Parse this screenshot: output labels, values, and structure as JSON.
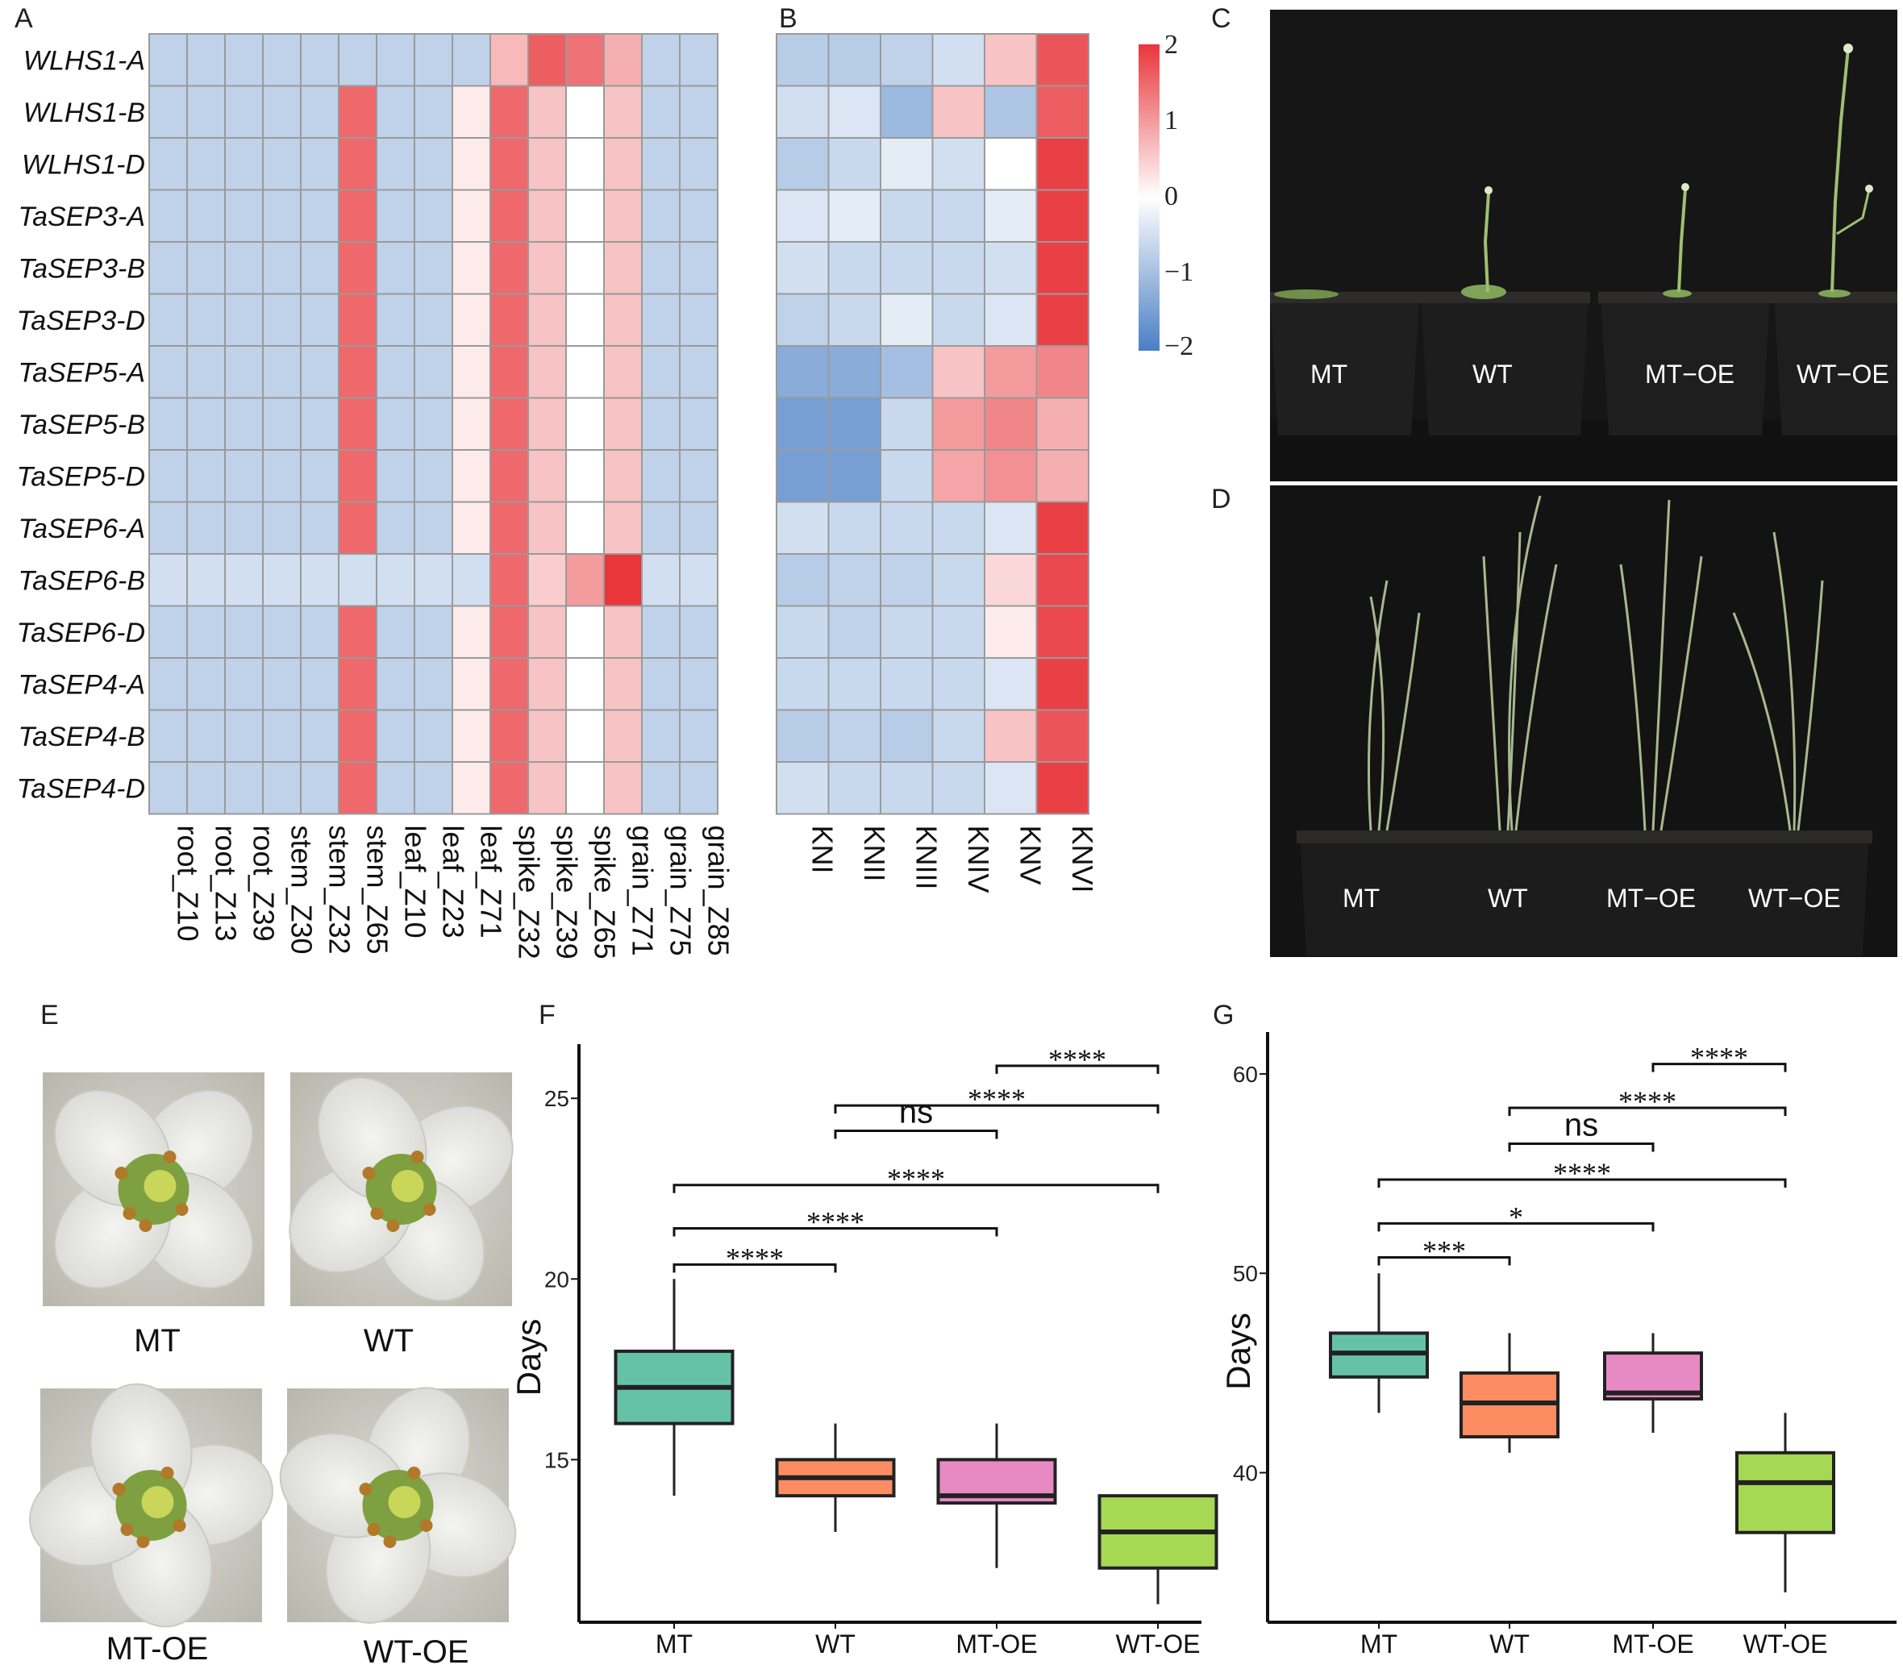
{
  "panels": {
    "A": "A",
    "B": "B",
    "C": "C",
    "D": "D",
    "E": "E",
    "F": "F",
    "G": "G"
  },
  "heatmap": {
    "genes": [
      "WLHS1-A",
      "WLHS1-B",
      "WLHS1-D",
      "TaSEP3-A",
      "TaSEP3-B",
      "TaSEP3-D",
      "TaSEP5-A",
      "TaSEP5-B",
      "TaSEP5-D",
      "TaSEP6-A",
      "TaSEP6-B",
      "TaSEP6-D",
      "TaSEP4-A",
      "TaSEP4-B",
      "TaSEP4-D"
    ],
    "tissues": [
      "root_Z10",
      "root_Z13",
      "root_Z39",
      "stem_Z30",
      "stem_Z32",
      "stem_Z65",
      "leaf_Z10",
      "leaf_Z23",
      "leaf_Z71",
      "spike_Z32",
      "spike_Z39",
      "spike_Z65",
      "grain_Z71",
      "grain_Z75",
      "grain_Z85"
    ],
    "tissue_values": [
      [
        -0.7,
        -0.7,
        -0.7,
        -0.7,
        -0.7,
        -0.7,
        -0.7,
        -0.7,
        -0.7,
        0.7,
        1.6,
        1.4,
        0.8,
        -0.7,
        -0.7
      ],
      [
        -0.7,
        -0.7,
        -0.7,
        -0.7,
        -0.7,
        1.5,
        -0.7,
        -0.7,
        0.2,
        1.5,
        0.6,
        0.0,
        0.6,
        -0.7,
        -0.7
      ],
      [
        -0.7,
        -0.7,
        -0.7,
        -0.7,
        -0.7,
        1.5,
        -0.7,
        -0.7,
        0.2,
        1.5,
        0.6,
        0.0,
        0.6,
        -0.7,
        -0.7
      ],
      [
        -0.7,
        -0.7,
        -0.7,
        -0.7,
        -0.7,
        1.5,
        -0.7,
        -0.7,
        0.2,
        1.5,
        0.6,
        0.0,
        0.6,
        -0.7,
        -0.7
      ],
      [
        -0.7,
        -0.7,
        -0.7,
        -0.7,
        -0.7,
        1.5,
        -0.7,
        -0.7,
        0.2,
        1.5,
        0.6,
        0.0,
        0.6,
        -0.7,
        -0.7
      ],
      [
        -0.7,
        -0.7,
        -0.7,
        -0.7,
        -0.7,
        1.5,
        -0.7,
        -0.7,
        0.2,
        1.5,
        0.6,
        0.0,
        0.6,
        -0.7,
        -0.7
      ],
      [
        -0.7,
        -0.7,
        -0.7,
        -0.7,
        -0.7,
        1.5,
        -0.7,
        -0.7,
        0.2,
        1.5,
        0.6,
        0.0,
        0.6,
        -0.7,
        -0.7
      ],
      [
        -0.7,
        -0.7,
        -0.7,
        -0.7,
        -0.7,
        1.5,
        -0.7,
        -0.7,
        0.2,
        1.5,
        0.6,
        0.0,
        0.6,
        -0.7,
        -0.7
      ],
      [
        -0.7,
        -0.7,
        -0.7,
        -0.7,
        -0.7,
        1.5,
        -0.7,
        -0.7,
        0.2,
        1.5,
        0.6,
        0.0,
        0.6,
        -0.7,
        -0.7
      ],
      [
        -0.7,
        -0.7,
        -0.7,
        -0.7,
        -0.7,
        1.5,
        -0.7,
        -0.7,
        0.2,
        1.5,
        0.6,
        0.0,
        0.6,
        -0.7,
        -0.7
      ],
      [
        -0.5,
        -0.5,
        -0.5,
        -0.5,
        -0.5,
        -0.5,
        -0.5,
        -0.5,
        -0.5,
        1.5,
        0.5,
        1.0,
        2.0,
        -0.5,
        -0.5
      ],
      [
        -0.7,
        -0.7,
        -0.7,
        -0.7,
        -0.7,
        1.5,
        -0.7,
        -0.7,
        0.2,
        1.5,
        0.6,
        0.0,
        0.6,
        -0.7,
        -0.7
      ],
      [
        -0.7,
        -0.7,
        -0.7,
        -0.7,
        -0.7,
        1.5,
        -0.7,
        -0.7,
        0.2,
        1.5,
        0.6,
        0.0,
        0.6,
        -0.7,
        -0.7
      ],
      [
        -0.7,
        -0.7,
        -0.7,
        -0.7,
        -0.7,
        1.5,
        -0.7,
        -0.7,
        0.2,
        1.5,
        0.6,
        0.0,
        0.6,
        -0.7,
        -0.7
      ],
      [
        -0.7,
        -0.7,
        -0.7,
        -0.7,
        -0.7,
        1.5,
        -0.7,
        -0.7,
        0.2,
        1.5,
        0.6,
        0.0,
        0.6,
        -0.7,
        -0.7
      ]
    ],
    "stages": [
      "KNI",
      "KNII",
      "KNIII",
      "KNIV",
      "KNV",
      "KNVI"
    ],
    "stage_values": [
      [
        -0.8,
        -0.8,
        -0.7,
        -0.5,
        0.6,
        1.7
      ],
      [
        -0.5,
        -0.4,
        -1.1,
        0.6,
        -0.9,
        1.6
      ],
      [
        -0.8,
        -0.6,
        -0.3,
        -0.5,
        0.0,
        1.9
      ],
      [
        -0.4,
        -0.3,
        -0.6,
        -0.6,
        -0.3,
        1.9
      ],
      [
        -0.5,
        -0.6,
        -0.6,
        -0.6,
        -0.5,
        1.9
      ],
      [
        -0.7,
        -0.6,
        -0.3,
        -0.6,
        -0.4,
        1.9
      ],
      [
        -1.3,
        -1.3,
        -1.0,
        0.6,
        1.0,
        1.2
      ],
      [
        -1.5,
        -1.5,
        -0.6,
        1.0,
        1.2,
        0.8
      ],
      [
        -1.5,
        -1.5,
        -0.6,
        0.9,
        1.1,
        0.8
      ],
      [
        -0.5,
        -0.6,
        -0.6,
        -0.6,
        -0.4,
        1.9
      ],
      [
        -0.8,
        -0.7,
        -0.7,
        -0.6,
        0.4,
        1.8
      ],
      [
        -0.6,
        -0.7,
        -0.6,
        -0.6,
        0.2,
        1.8
      ],
      [
        -0.6,
        -0.6,
        -0.6,
        -0.6,
        -0.4,
        1.9
      ],
      [
        -0.8,
        -0.7,
        -0.8,
        -0.6,
        0.6,
        1.7
      ],
      [
        -0.5,
        -0.6,
        -0.6,
        -0.6,
        -0.4,
        1.9
      ]
    ],
    "scale_labels": [
      "2",
      "1",
      "0",
      "−1",
      "−2"
    ],
    "colors": {
      "low": "#4a7fc4",
      "mid": "#ffffff",
      "high": "#e8363b",
      "grid": "#9a9a9a"
    }
  },
  "photos": {
    "C_labels": [
      "MT",
      "WT",
      "MT−OE",
      "WT−OE"
    ],
    "D_labels": [
      "MT",
      "WT",
      "MT−OE",
      "WT−OE"
    ],
    "flowers": [
      "MT",
      "WT",
      "MT-OE",
      "WT-OE"
    ]
  },
  "chart_data": [
    {
      "type": "box",
      "panel": "F",
      "ylabel": "Days",
      "ylim": [
        10.5,
        26.5
      ],
      "yticks": [
        "15",
        "20",
        "25"
      ],
      "categories": [
        "MT",
        "WT",
        "MT-OE",
        "WT-OE"
      ],
      "colors": [
        "#66c2a5",
        "#fc8d62",
        "#e78ac3",
        "#a6d854"
      ],
      "boxes": [
        {
          "min": 14,
          "q1": 16,
          "median": 17,
          "q3": 18,
          "max": 20
        },
        {
          "min": 13,
          "q1": 14,
          "median": 14.5,
          "q3": 15,
          "max": 16
        },
        {
          "min": 12,
          "q1": 13.8,
          "median": 14,
          "q3": 15,
          "max": 16
        },
        {
          "min": 11,
          "q1": 12,
          "median": 13,
          "q3": 14,
          "max": 14
        }
      ],
      "comparisons": [
        {
          "from": 2,
          "to": 3,
          "y": 25.9,
          "label": "****"
        },
        {
          "from": 1,
          "to": 3,
          "y": 24.8,
          "label": "****"
        },
        {
          "from": 1,
          "to": 2,
          "y": 24.1,
          "label": "ns"
        },
        {
          "from": 0,
          "to": 3,
          "y": 22.6,
          "label": "****"
        },
        {
          "from": 0,
          "to": 2,
          "y": 21.4,
          "label": "****"
        },
        {
          "from": 0,
          "to": 1,
          "y": 20.4,
          "label": "****"
        }
      ]
    },
    {
      "type": "box",
      "panel": "G",
      "ylabel": "Days",
      "ylim": [
        32.5,
        62.1
      ],
      "yticks": [
        "40",
        "50",
        "60"
      ],
      "categories": [
        "MT",
        "WT",
        "MT-OE",
        "WT-OE"
      ],
      "colors": [
        "#66c2a5",
        "#fc8d62",
        "#e78ac3",
        "#a6d854"
      ],
      "boxes": [
        {
          "min": 43,
          "q1": 44.8,
          "median": 46,
          "q3": 47,
          "max": 50
        },
        {
          "min": 41,
          "q1": 41.8,
          "median": 43.5,
          "q3": 45,
          "max": 47
        },
        {
          "min": 42,
          "q1": 43.7,
          "median": 44,
          "q3": 46,
          "max": 47
        },
        {
          "min": 34,
          "q1": 37,
          "median": 39.5,
          "q3": 41,
          "max": 43
        }
      ],
      "comparisons": [
        {
          "from": 2,
          "to": 3,
          "y": 60.5,
          "label": "****"
        },
        {
          "from": 1,
          "to": 3,
          "y": 58.3,
          "label": "****"
        },
        {
          "from": 1,
          "to": 2,
          "y": 56.5,
          "label": "ns"
        },
        {
          "from": 0,
          "to": 3,
          "y": 54.7,
          "label": "****"
        },
        {
          "from": 0,
          "to": 2,
          "y": 52.5,
          "label": "*"
        },
        {
          "from": 0,
          "to": 1,
          "y": 50.8,
          "label": "***"
        }
      ]
    }
  ]
}
